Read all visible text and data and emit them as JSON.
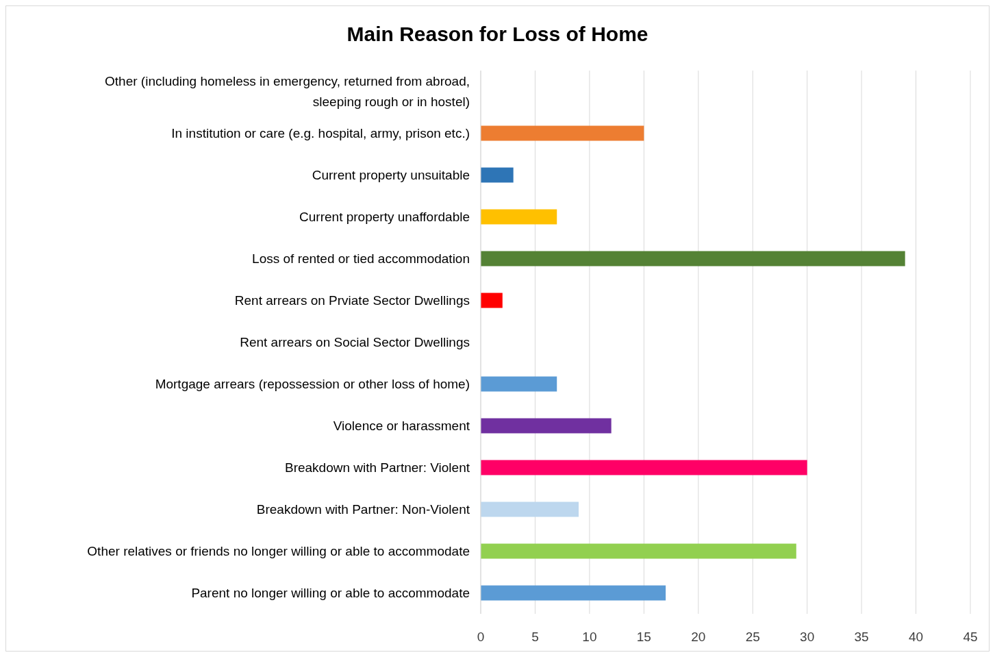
{
  "chart_data": {
    "type": "bar",
    "orientation": "horizontal",
    "title": "Main Reason for Loss of Home",
    "categories": [
      "Other (including homeless in emergency, returned from abroad, sleeping rough or in hostel)",
      "In institution or care (e.g. hospital, army, prison etc.)",
      "Current property unsuitable",
      "Current property unaffordable",
      "Loss of rented or tied accommodation",
      "Rent arrears on Prviate Sector Dwellings",
      "Rent arrears on Social Sector Dwellings",
      "Mortgage arrears (repossession or other loss of home)",
      "Violence or harassment",
      "Breakdown with Partner: Violent",
      "Breakdown with Partner: Non-Violent",
      "Other relatives or friends no longer willing or able to accommodate",
      "Parent no longer willing or able to accommodate"
    ],
    "values": [
      0,
      15,
      3,
      7,
      39,
      2,
      0,
      7,
      12,
      30,
      9,
      29,
      17
    ],
    "colors": [
      "#a5a5a5",
      "#ed7d31",
      "#2e75b6",
      "#ffc000",
      "#548235",
      "#ff0000",
      "#4472c4",
      "#5b9bd5",
      "#7030a0",
      "#ff0066",
      "#bdd7ee",
      "#92d050",
      "#5b9bd5"
    ],
    "xlim": [
      0,
      45
    ],
    "xticks": [
      0,
      5,
      10,
      15,
      20,
      25,
      30,
      35,
      40,
      45
    ],
    "grid": "x"
  }
}
